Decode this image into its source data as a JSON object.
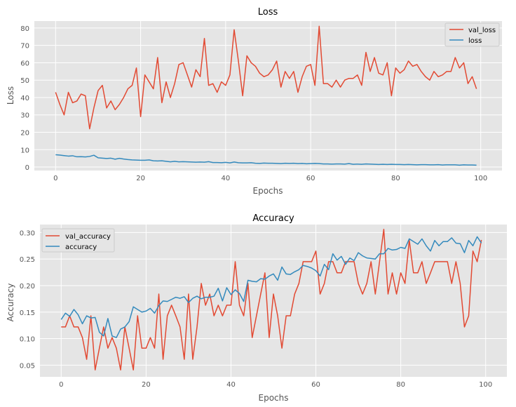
{
  "chart_data": [
    {
      "type": "line",
      "title": "Loss",
      "xlabel": "Epochs",
      "ylabel": "Loss",
      "xlim": [
        -5,
        105
      ],
      "ylim": [
        -2,
        84
      ],
      "xticks": [
        0,
        20,
        40,
        60,
        80,
        100
      ],
      "yticks": [
        0,
        10,
        20,
        30,
        40,
        50,
        60,
        70,
        80
      ],
      "grid": true,
      "legend_position": "top-right",
      "series": [
        {
          "name": "val_loss",
          "color": "#e24a33",
          "values": [
            43,
            36,
            30,
            43,
            37,
            38,
            42,
            41,
            22,
            34,
            44,
            47,
            34,
            38,
            33,
            36,
            40,
            45,
            47,
            57,
            29,
            53,
            49,
            45,
            63,
            37,
            49,
            40,
            48,
            59,
            60,
            53,
            46,
            56,
            52,
            74,
            47,
            48,
            43,
            49,
            47,
            53,
            79,
            61,
            41,
            64,
            60,
            58,
            54,
            52,
            53,
            56,
            61,
            46,
            55,
            51,
            55,
            43,
            52,
            58,
            59,
            47,
            81,
            48,
            48,
            46,
            50,
            46,
            50,
            51,
            51,
            53,
            47,
            66,
            55,
            63,
            54,
            53,
            60,
            41,
            57,
            54,
            56,
            61,
            58,
            59,
            55,
            52,
            50,
            55,
            52,
            53,
            55,
            55,
            63,
            57,
            60,
            48,
            52,
            45
          ]
        },
        {
          "name": "loss",
          "color": "#348abd",
          "values": [
            7.1,
            6.9,
            6.6,
            6.3,
            6.5,
            5.9,
            6.0,
            5.8,
            6.1,
            6.8,
            5.3,
            5.1,
            4.9,
            5.1,
            4.5,
            5.0,
            4.6,
            4.3,
            4.1,
            4.0,
            3.9,
            3.9,
            4.1,
            3.6,
            3.5,
            3.6,
            3.3,
            3.0,
            3.3,
            3.0,
            3.1,
            3.0,
            2.9,
            2.8,
            2.9,
            2.8,
            3.1,
            2.6,
            2.6,
            2.5,
            2.7,
            2.4,
            2.9,
            2.5,
            2.4,
            2.4,
            2.5,
            2.2,
            2.1,
            2.3,
            2.2,
            2.2,
            2.1,
            2.0,
            2.2,
            2.1,
            2.2,
            2.0,
            2.1,
            1.9,
            2.0,
            2.1,
            2.0,
            1.8,
            1.8,
            1.7,
            1.8,
            1.8,
            1.7,
            2.0,
            1.6,
            1.7,
            1.6,
            1.8,
            1.7,
            1.6,
            1.5,
            1.6,
            1.5,
            1.6,
            1.5,
            1.5,
            1.4,
            1.5,
            1.4,
            1.3,
            1.4,
            1.4,
            1.3,
            1.3,
            1.4,
            1.2,
            1.3,
            1.3,
            1.3,
            1.1,
            1.3,
            1.2,
            1.2,
            1.1
          ]
        }
      ]
    },
    {
      "type": "line",
      "title": "Accuracy",
      "xlabel": "Epochs",
      "ylabel": "Accuracy",
      "xlim": [
        -5,
        105
      ],
      "ylim": [
        0.028,
        0.315
      ],
      "xticks": [
        0,
        20,
        40,
        60,
        80,
        100
      ],
      "yticks": [
        0.05,
        0.1,
        0.15,
        0.2,
        0.25,
        0.3
      ],
      "ytick_labels": [
        "0.05",
        "0.10",
        "0.15",
        "0.20",
        "0.25",
        "0.30"
      ],
      "grid": true,
      "legend_position": "top-left",
      "series": [
        {
          "name": "val_accuracy",
          "color": "#e24a33",
          "values": [
            0.122,
            0.122,
            0.143,
            0.122,
            0.122,
            0.102,
            0.061,
            0.143,
            0.041,
            0.082,
            0.122,
            0.082,
            0.102,
            0.082,
            0.041,
            0.122,
            0.082,
            0.041,
            0.143,
            0.082,
            0.082,
            0.102,
            0.082,
            0.184,
            0.061,
            0.143,
            0.163,
            0.143,
            0.122,
            0.061,
            0.184,
            0.061,
            0.122,
            0.204,
            0.163,
            0.184,
            0.143,
            0.163,
            0.143,
            0.163,
            0.163,
            0.245,
            0.163,
            0.143,
            0.204,
            0.102,
            0.143,
            0.184,
            0.224,
            0.102,
            0.184,
            0.143,
            0.082,
            0.143,
            0.143,
            0.184,
            0.204,
            0.245,
            0.245,
            0.245,
            0.265,
            0.184,
            0.204,
            0.245,
            0.245,
            0.224,
            0.224,
            0.245,
            0.245,
            0.245,
            0.204,
            0.184,
            0.204,
            0.245,
            0.184,
            0.245,
            0.306,
            0.184,
            0.224,
            0.184,
            0.224,
            0.204,
            0.286,
            0.224,
            0.224,
            0.245,
            0.204,
            0.224,
            0.245,
            0.245,
            0.245,
            0.245,
            0.204,
            0.245,
            0.204,
            0.122,
            0.143,
            0.265,
            0.245,
            0.286
          ]
        },
        {
          "name": "accuracy",
          "color": "#348abd",
          "values": [
            0.136,
            0.148,
            0.142,
            0.155,
            0.145,
            0.128,
            0.143,
            0.139,
            0.14,
            0.112,
            0.105,
            0.138,
            0.105,
            0.102,
            0.118,
            0.122,
            0.132,
            0.16,
            0.155,
            0.15,
            0.152,
            0.157,
            0.148,
            0.162,
            0.171,
            0.17,
            0.174,
            0.178,
            0.176,
            0.179,
            0.168,
            0.176,
            0.18,
            0.175,
            0.178,
            0.178,
            0.18,
            0.195,
            0.171,
            0.196,
            0.183,
            0.192,
            0.185,
            0.17,
            0.21,
            0.208,
            0.207,
            0.213,
            0.212,
            0.218,
            0.222,
            0.21,
            0.235,
            0.222,
            0.221,
            0.226,
            0.23,
            0.238,
            0.236,
            0.233,
            0.228,
            0.218,
            0.24,
            0.23,
            0.26,
            0.248,
            0.255,
            0.24,
            0.252,
            0.247,
            0.262,
            0.256,
            0.252,
            0.251,
            0.25,
            0.26,
            0.26,
            0.27,
            0.267,
            0.268,
            0.272,
            0.27,
            0.288,
            0.283,
            0.278,
            0.288,
            0.275,
            0.265,
            0.285,
            0.275,
            0.283,
            0.283,
            0.29,
            0.28,
            0.279,
            0.262,
            0.285,
            0.275,
            0.292,
            0.28
          ]
        }
      ]
    }
  ]
}
